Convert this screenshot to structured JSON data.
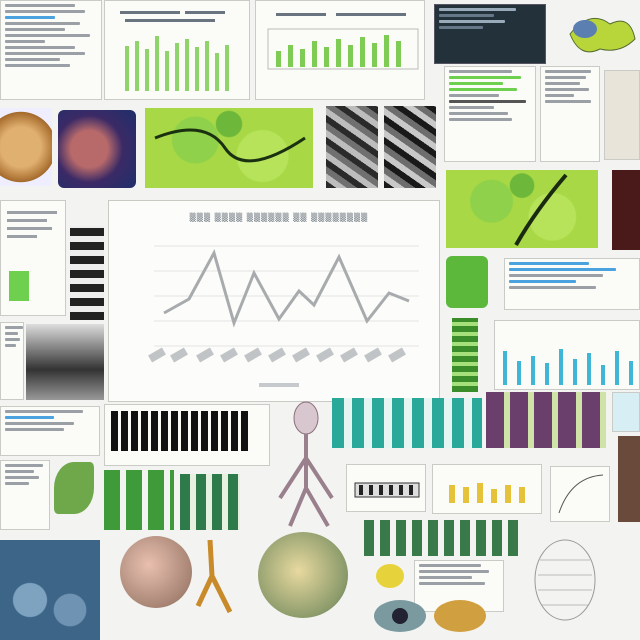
{
  "collage": {
    "tiles": [
      {
        "name": "doc-top-left"
      },
      {
        "name": "bar-chart-top"
      },
      {
        "name": "bar-chart-top-right"
      },
      {
        "name": "screen-panel-dark"
      },
      {
        "name": "leaf-illustration"
      }
    ]
  },
  "colors": {
    "accent_green": "#6fcf4e",
    "accent_blue": "#4aa3df",
    "line_gray": "#a8abad",
    "background": "#f3f4f2"
  }
}
